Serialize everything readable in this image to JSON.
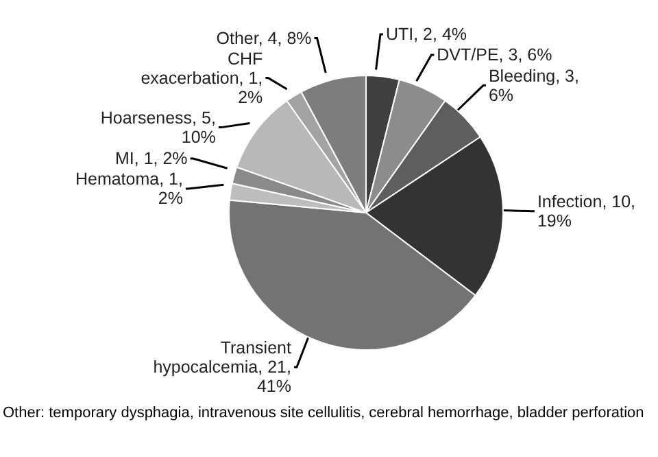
{
  "chart_data": {
    "type": "pie",
    "categories": [
      "UTI",
      "DVT/PE",
      "Bleeding",
      "Infection",
      "Transient hypocalcemia",
      "Hematoma",
      "MI",
      "Hoarseness",
      "CHF exacerbation",
      "Other"
    ],
    "values": [
      2,
      3,
      3,
      10,
      21,
      1,
      1,
      5,
      1,
      4
    ],
    "value_labels": [
      "2, 4%",
      "3, 6%",
      "3, 6%",
      "10, 19%",
      "21, 41%",
      "1, 2%",
      "1, 2%",
      "5, 10%",
      "1, 2%",
      "4, 8%"
    ],
    "colors": [
      "#404040",
      "#8c8c8c",
      "#5e5e5e",
      "#333333",
      "#737373",
      "#bdbdbd",
      "#8a8a8a",
      "#b8b8b8",
      "#a3a3a3",
      "#7d7d7d"
    ],
    "annotations": [
      "Other:  temporary dysphagia, intravenous site cellulitis, cerebral hemorrhage, bladder perforation"
    ],
    "legend": false
  }
}
